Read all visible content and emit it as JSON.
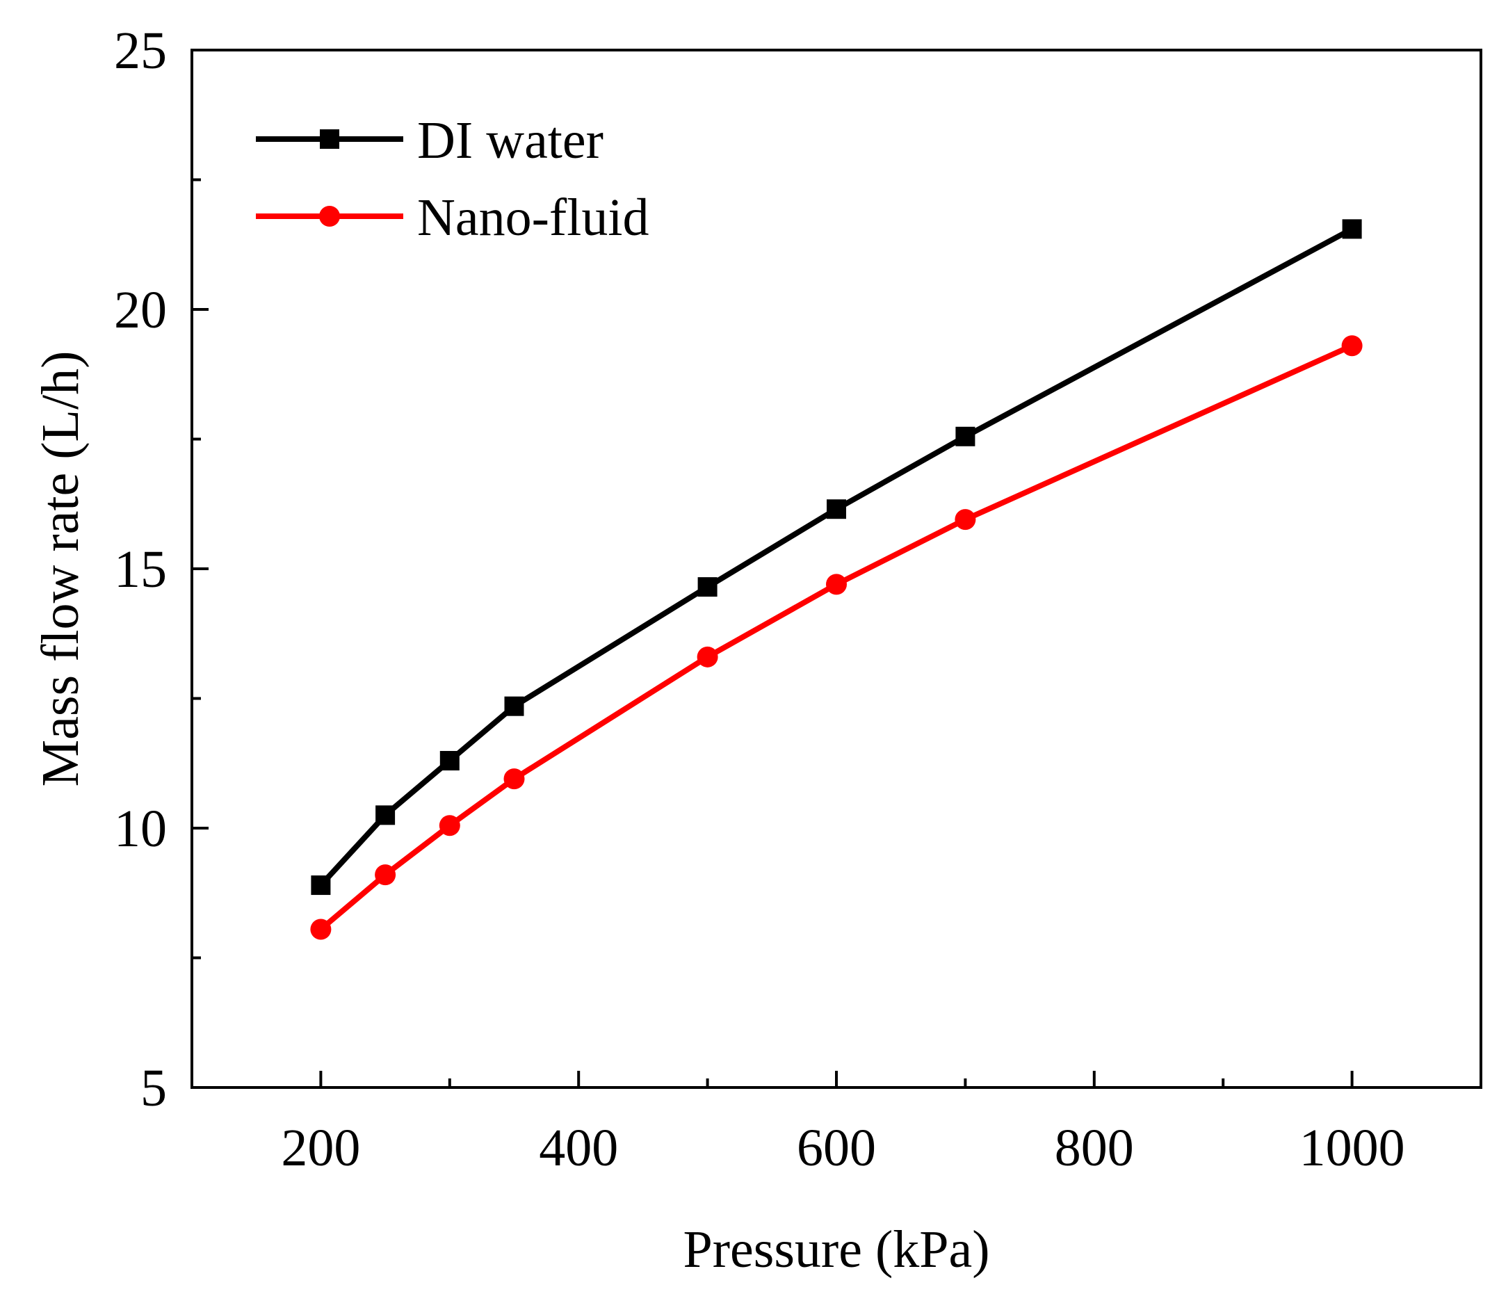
{
  "chart_data": {
    "type": "line",
    "title": "",
    "xlabel": "Pressure (kPa)",
    "ylabel": "Mass flow rate (L/h)",
    "xlim": [
      100,
      1100
    ],
    "ylim": [
      5,
      25
    ],
    "xticks": [
      200,
      400,
      600,
      800,
      1000
    ],
    "xticks_minor": [
      300,
      500,
      700,
      900
    ],
    "yticks": [
      5,
      10,
      15,
      20,
      25
    ],
    "yticks_minor": [
      7.5,
      12.5,
      17.5,
      22.5
    ],
    "grid": false,
    "legend_position": "top-left",
    "x": [
      200,
      250,
      300,
      350,
      500,
      600,
      700,
      1000
    ],
    "series": [
      {
        "name": "DI water",
        "color": "#000000",
        "marker": "square",
        "values": [
          8.9,
          10.25,
          11.3,
          12.35,
          14.65,
          16.15,
          17.55,
          21.55
        ]
      },
      {
        "name": "Nano-fluid",
        "color": "#ff0000",
        "marker": "circle",
        "values": [
          8.05,
          9.1,
          10.05,
          10.95,
          13.3,
          14.7,
          15.95,
          19.3
        ]
      }
    ]
  }
}
